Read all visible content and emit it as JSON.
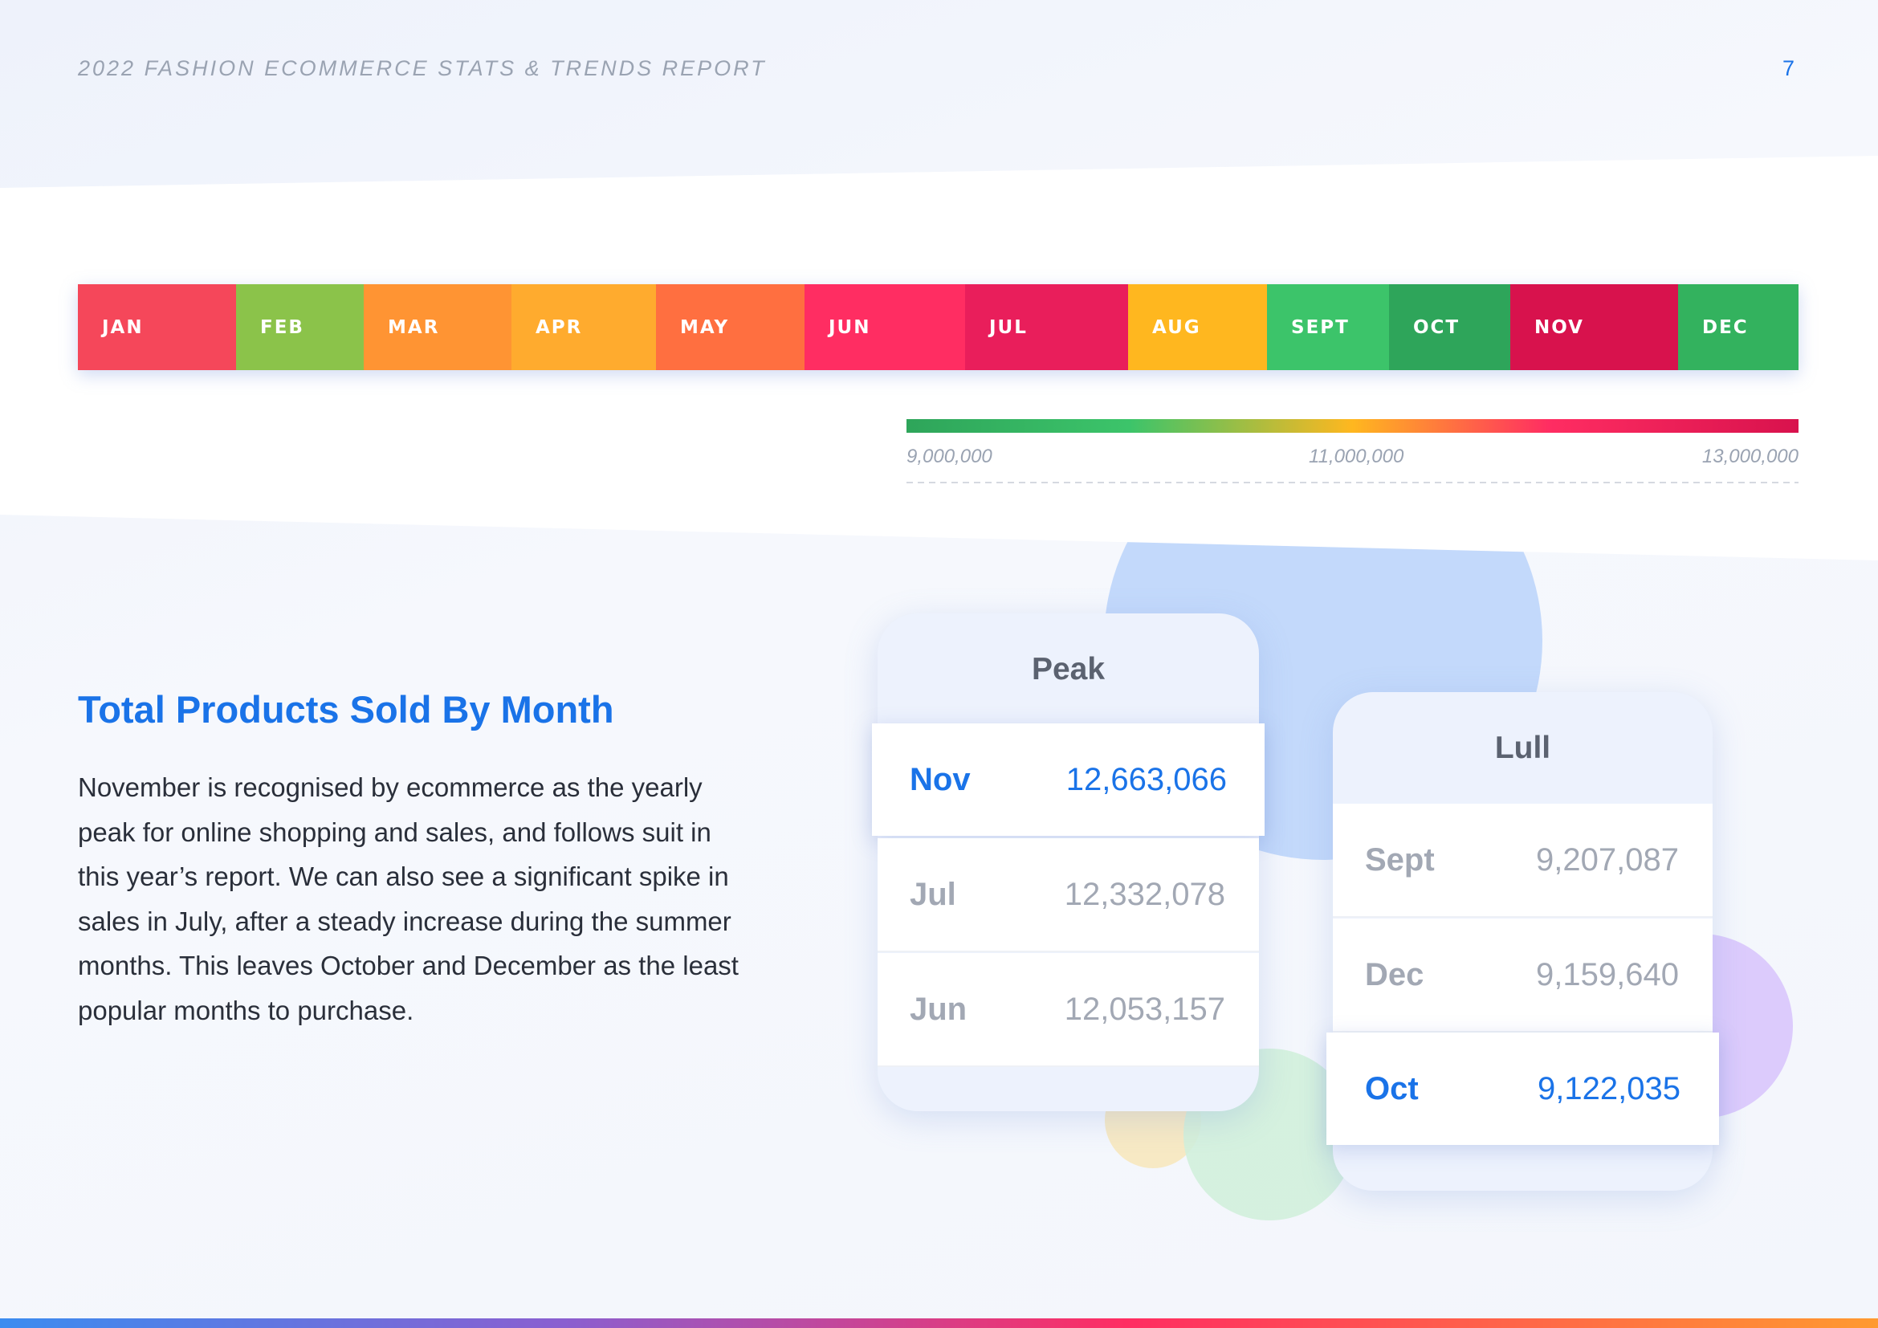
{
  "header": {
    "title": "2022 FASHION ECOMMERCE STATS & TRENDS REPORT",
    "page": "7"
  },
  "months": [
    {
      "label": "JAN",
      "color": "#f5475a"
    },
    {
      "label": "FEB",
      "color": "#8bc34a"
    },
    {
      "label": "MAR",
      "color": "#ff9433"
    },
    {
      "label": "APR",
      "color": "#ffab2e"
    },
    {
      "label": "MAY",
      "color": "#ff6f40"
    },
    {
      "label": "JUN",
      "color": "#ff2d62"
    },
    {
      "label": "JUL",
      "color": "#e91e5b"
    },
    {
      "label": "AUG",
      "color": "#ffb71f"
    },
    {
      "label": "SEPT",
      "color": "#3cc46a"
    },
    {
      "label": "OCT",
      "color": "#2ea55a"
    },
    {
      "label": "NOV",
      "color": "#d8124d"
    },
    {
      "label": "DEC",
      "color": "#33b25e"
    }
  ],
  "scale": {
    "labels": [
      "9,000,000",
      "11,000,000",
      "13,000,000"
    ]
  },
  "section": {
    "title": "Total Products Sold By Month",
    "body": [
      "November is recognised by ecommerce as the yearly",
      "peak for online shopping and sales, and follows suit in",
      "this year’s report. We can also see a significant spike in",
      "sales in July, after a steady increase during the summer",
      "months. This leaves October and December as the least",
      "popular months to purchase."
    ]
  },
  "peak": {
    "title": "Peak",
    "rows": [
      {
        "month": "Nov",
        "value": "12,663,066"
      },
      {
        "month": "Jul",
        "value": "12,332,078"
      },
      {
        "month": "Jun",
        "value": "12,053,157"
      }
    ]
  },
  "lull": {
    "title": "Lull",
    "rows": [
      {
        "month": "Sept",
        "value": "9,207,087"
      },
      {
        "month": "Dec",
        "value": "9,159,640"
      },
      {
        "month": "Oct",
        "value": "9,122,035"
      }
    ]
  }
}
